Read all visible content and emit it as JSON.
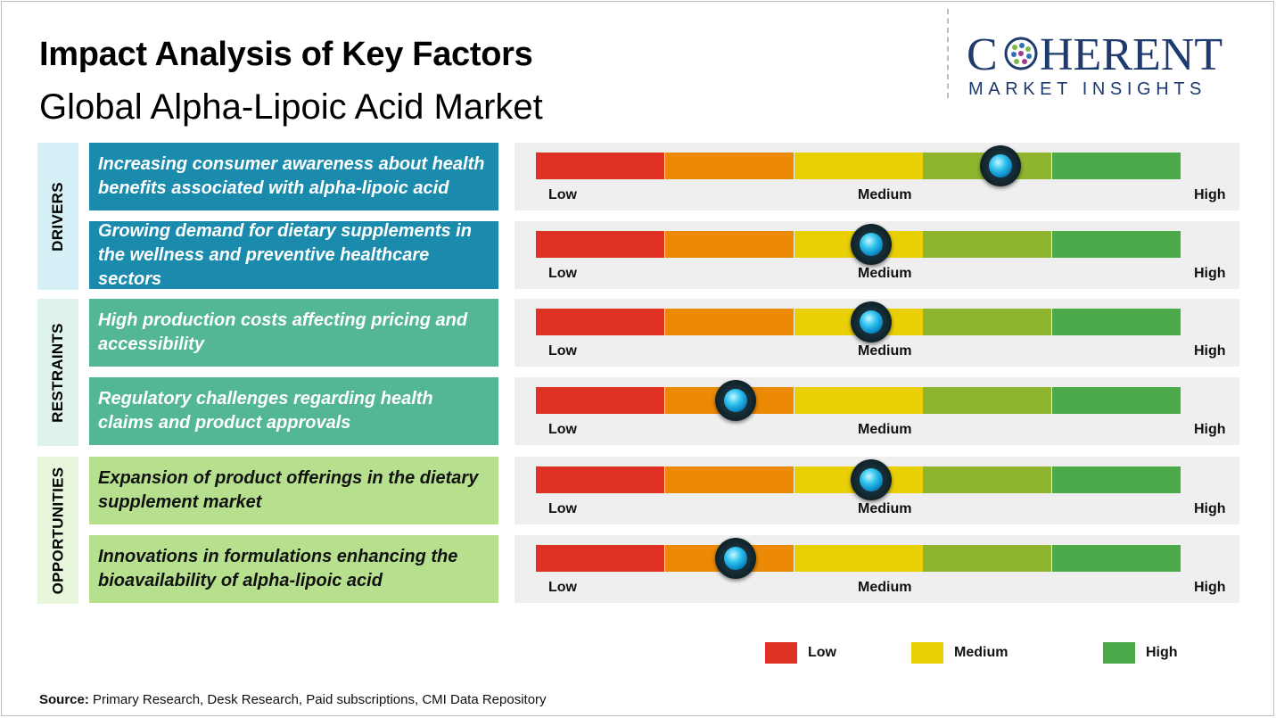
{
  "header": {
    "title": "Impact Analysis of Key Factors",
    "subtitle": "Global Alpha-Lipoic Acid Market"
  },
  "logo": {
    "name_left": "C",
    "name_right": "HERENT",
    "tagline": "MARKET INSIGHTS"
  },
  "colors": {
    "drivers_box": "#1b8bad",
    "drivers_band": "#d6f0f8",
    "restraints_box": "#52b697",
    "restraints_band": "#dff3ec",
    "opportunities_box": "#b7e08e",
    "opportunities_band": "#e8f6db",
    "scale": [
      "#e03224",
      "#ec8a06",
      "#e9cf05",
      "#8fb52e",
      "#4bab4a"
    ]
  },
  "categories": [
    {
      "name": "DRIVERS"
    },
    {
      "name": "RESTRAINTS"
    },
    {
      "name": "OPPORTUNITIES"
    }
  ],
  "chart_data": {
    "type": "gauge",
    "scale_labels": {
      "low": "Low",
      "medium": "Medium",
      "high": "High"
    },
    "scale_range": [
      0,
      100
    ],
    "factors": [
      {
        "category": "DRIVERS",
        "text": "Increasing consumer awareness about health benefits associated with alpha-lipoic acid",
        "impact": 72
      },
      {
        "category": "DRIVERS",
        "text": "Growing demand for dietary supplements in the wellness and preventive healthcare sectors",
        "impact": 52
      },
      {
        "category": "RESTRAINTS",
        "text": "High production costs affecting pricing and accessibility",
        "impact": 52
      },
      {
        "category": "RESTRAINTS",
        "text": "Regulatory challenges regarding health claims and product approvals",
        "impact": 31
      },
      {
        "category": "OPPORTUNITIES",
        "text": "Expansion of product offerings in the dietary supplement market",
        "impact": 52
      },
      {
        "category": "OPPORTUNITIES",
        "text": "Innovations in formulations enhancing the bioavailability of alpha-lipoic acid",
        "impact": 31
      }
    ],
    "legend": [
      {
        "label": "Low",
        "color": "#e03224"
      },
      {
        "label": "Medium",
        "color": "#e9cf05"
      },
      {
        "label": "High",
        "color": "#4bab4a"
      }
    ]
  },
  "footer": {
    "source_label": "Source:",
    "source_text": " Primary Research, Desk Research, Paid subscriptions, CMI Data Repository"
  }
}
